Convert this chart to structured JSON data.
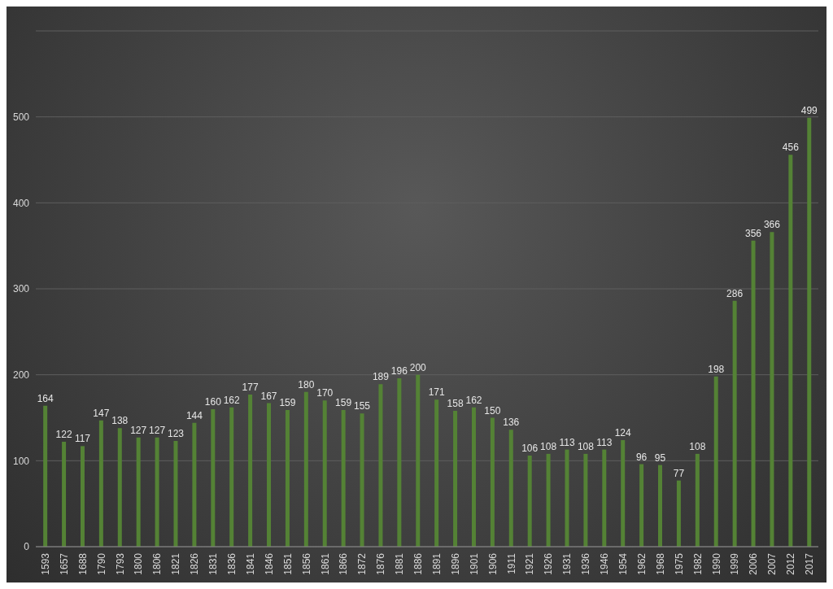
{
  "chart_data": {
    "type": "bar",
    "categories": [
      "1593",
      "1657",
      "1688",
      "1790",
      "1793",
      "1800",
      "1806",
      "1821",
      "1826",
      "1831",
      "1836",
      "1841",
      "1846",
      "1851",
      "1856",
      "1861",
      "1866",
      "1872",
      "1876",
      "1881",
      "1886",
      "1891",
      "1896",
      "1901",
      "1906",
      "1911",
      "1921",
      "1926",
      "1931",
      "1936",
      "1946",
      "1954",
      "1962",
      "1968",
      "1975",
      "1982",
      "1990",
      "1999",
      "2006",
      "2007",
      "2012",
      "2017"
    ],
    "values": [
      164,
      122,
      117,
      147,
      138,
      127,
      127,
      123,
      144,
      160,
      162,
      177,
      167,
      159,
      180,
      170,
      159,
      155,
      189,
      196,
      200,
      171,
      158,
      162,
      150,
      136,
      106,
      108,
      113,
      108,
      113,
      124,
      96,
      95,
      77,
      108,
      198,
      286,
      356,
      366,
      456,
      499
    ],
    "color": "#548235",
    "ylim": [
      0,
      600
    ],
    "yticks": [
      0,
      100,
      200,
      300,
      400,
      500
    ],
    "grid": "y",
    "data_labels": true
  }
}
